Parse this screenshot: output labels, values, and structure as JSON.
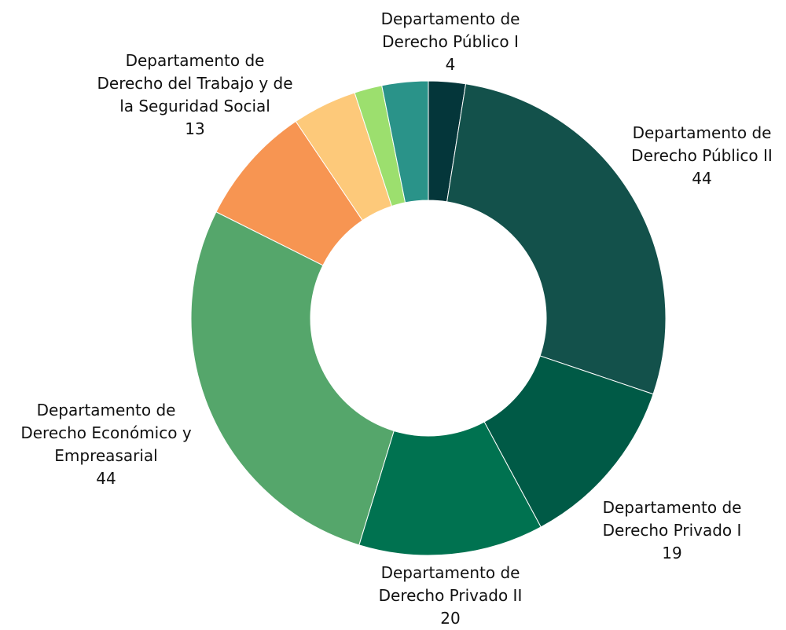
{
  "chart_data": {
    "type": "donut",
    "categories": [
      "Departamento de\nDerecho Público I",
      "Departamento de\nDerecho Público II",
      "Departamento de\nDerecho Privado I",
      "Departamento de\nDerecho Privado II",
      "Departamento de\nDerecho Económico y\nEmpreasarial",
      "Departamento de\nDerecho del Trabajo y de\nla Seguridad Social",
      null,
      null,
      null
    ],
    "values": [
      4,
      44,
      19,
      20,
      44,
      13,
      7,
      3,
      5
    ],
    "colors": [
      "#04363a",
      "#13514b",
      "#005a46",
      "#007250",
      "#55a66b",
      "#f79552",
      "#fdc97a",
      "#9cdf6e",
      "#2a9389"
    ]
  }
}
